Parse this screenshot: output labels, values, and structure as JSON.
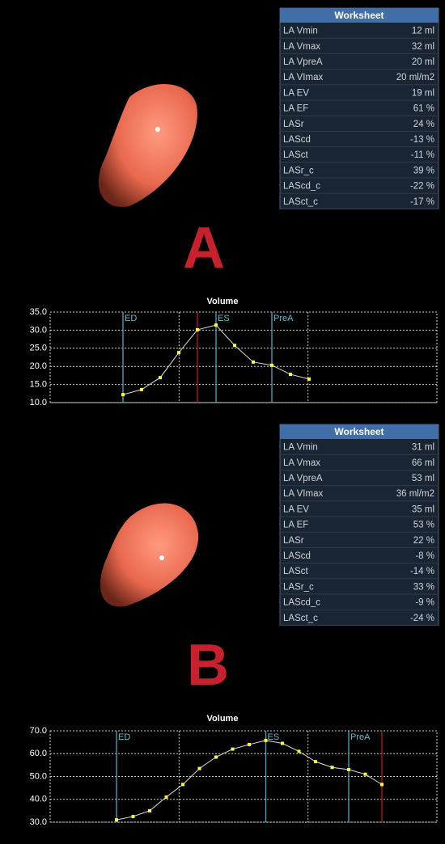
{
  "panels": [
    {
      "label": "A",
      "worksheet": {
        "title": "Worksheet",
        "rows": [
          [
            "LA Vmin",
            "12 ml"
          ],
          [
            "LA Vmax",
            "32 ml"
          ],
          [
            "LA VpreA",
            "20 ml"
          ],
          [
            "LA VImax",
            "20 ml/m2"
          ],
          [
            "LA EV",
            "19 ml"
          ],
          [
            "LA EF",
            "61 %"
          ],
          [
            "LASr",
            "24 %"
          ],
          [
            "LAScd",
            "-13 %"
          ],
          [
            "LASct",
            "-11 %"
          ],
          [
            "LASr_c",
            "39 %"
          ],
          [
            "LAScd_c",
            "-22 %"
          ],
          [
            "LASct_c",
            "-17 %"
          ]
        ]
      }
    },
    {
      "label": "B",
      "worksheet": {
        "title": "Worksheet",
        "rows": [
          [
            "LA Vmin",
            "31 ml"
          ],
          [
            "LA Vmax",
            "66 ml"
          ],
          [
            "LA VpreA",
            "53 ml"
          ],
          [
            "LA VImax",
            "36 ml/m2"
          ],
          [
            "LA EV",
            "35 ml"
          ],
          [
            "LA EF",
            "53 %"
          ],
          [
            "LASr",
            "22 %"
          ],
          [
            "LAScd",
            "-8 %"
          ],
          [
            "LASct",
            "-14 %"
          ],
          [
            "LASr_c",
            "33 %"
          ],
          [
            "LAScd_c",
            "-9 %"
          ],
          [
            "LASct_c",
            "-24 %"
          ]
        ]
      }
    }
  ],
  "chart_data": [
    {
      "type": "line",
      "title": "Volume",
      "color": "#ffff33",
      "values": [
        12.2,
        13.6,
        16.9,
        23.8,
        30.1,
        31.4,
        25.8,
        21.2,
        20.3,
        17.8,
        16.5
      ],
      "ylim": [
        10,
        35
      ],
      "yticks": [
        {
          "value": 10,
          "label": "10.0"
        },
        {
          "value": 15,
          "label": "15.0"
        },
        {
          "value": 20,
          "label": "20.0"
        },
        {
          "value": 25,
          "label": "25.0"
        },
        {
          "value": 30,
          "label": "30.0"
        },
        {
          "value": 35,
          "label": "35.0"
        }
      ],
      "grid": true,
      "events": [
        {
          "label": "ED",
          "at": 0
        },
        {
          "label": "ES",
          "at": 5
        },
        {
          "label": "PreA",
          "at": 8
        },
        {
          "at": 4,
          "color": "#c0141c"
        }
      ]
    },
    {
      "type": "line",
      "title": "Volume",
      "color": "#ffff33",
      "values": [
        31,
        32.5,
        35,
        41,
        46.5,
        53.5,
        58.5,
        62,
        64,
        65.8,
        64.5,
        61,
        56.5,
        54,
        53,
        51,
        46.5
      ],
      "ylim": [
        30,
        70
      ],
      "yticks": [
        {
          "value": 30,
          "label": "30.0"
        },
        {
          "value": 40,
          "label": "40.0"
        },
        {
          "value": 50,
          "label": "50.0"
        },
        {
          "value": 60,
          "label": "60.0"
        },
        {
          "value": 70,
          "label": "70.0"
        }
      ],
      "grid": true,
      "events": [
        {
          "label": "ED",
          "at": 0
        },
        {
          "label": "ES",
          "at": 9
        },
        {
          "label": "PreA",
          "at": 14
        },
        {
          "at": 16,
          "color": "#c0141c"
        }
      ]
    }
  ]
}
